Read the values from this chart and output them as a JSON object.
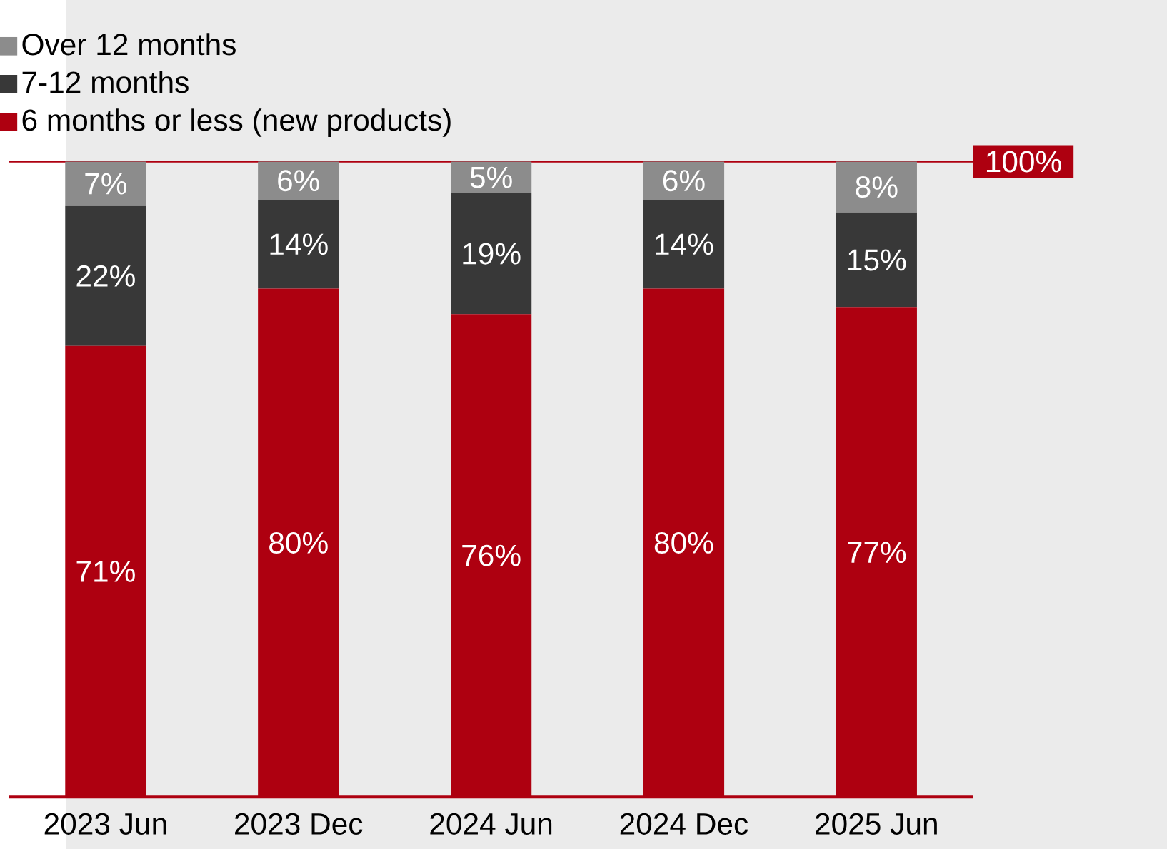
{
  "chart_data": {
    "type": "bar",
    "stacked": true,
    "categories": [
      "2023 Jun",
      "2023 Dec",
      "2024 Jun",
      "2024 Dec",
      "2025 Jun"
    ],
    "series": [
      {
        "name": "6 months or less (new products)",
        "color": "#ae0010",
        "values": [
          71,
          80,
          76,
          80,
          77
        ],
        "value_labels": [
          "71%",
          "80%",
          "76%",
          "80%",
          "77%"
        ]
      },
      {
        "name": "7-12 months",
        "color": "#383838",
        "values": [
          22,
          14,
          19,
          14,
          15
        ],
        "value_labels": [
          "22%",
          "14%",
          "19%",
          "14%",
          "15%"
        ]
      },
      {
        "name": "Over 12 months",
        "color": "#8c8c8c",
        "values": [
          7,
          6,
          5,
          6,
          8
        ],
        "value_labels": [
          "7%",
          "6%",
          "5%",
          "6%",
          "8%"
        ]
      }
    ],
    "tick_labels": "x",
    "legend": "top left",
    "ref_lines": [
      {
        "axis": "y",
        "value": 100,
        "label": "100%",
        "color": "#ae0010"
      }
    ]
  }
}
